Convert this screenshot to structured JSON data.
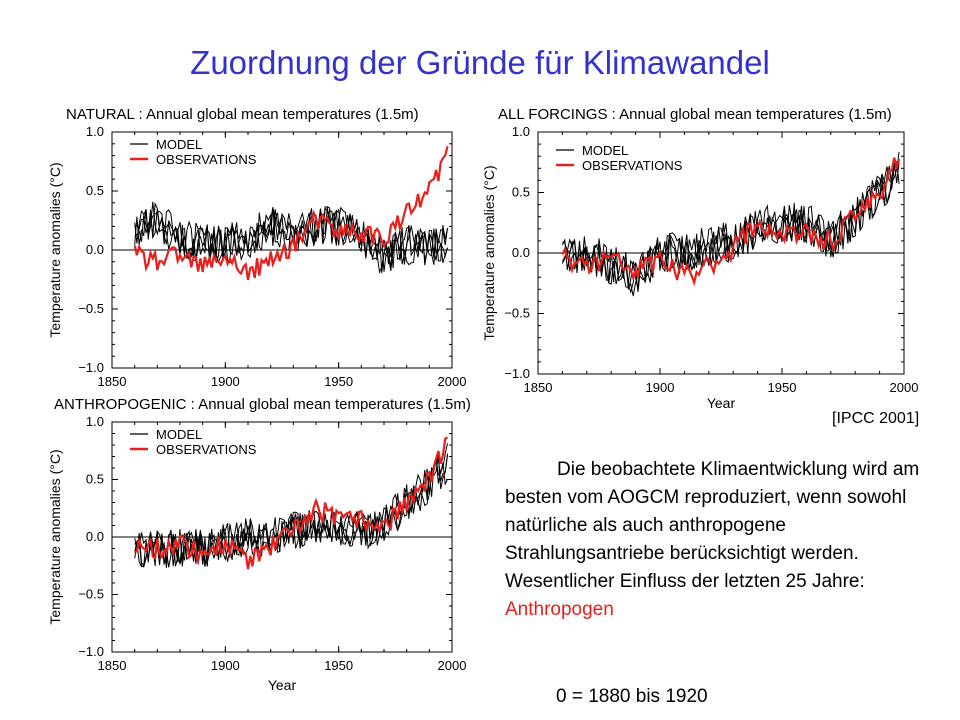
{
  "slide": {
    "title": "Zuordnung der Gründe für Klimawandel",
    "source": "[IPCC 2001]",
    "caption_main": "Die beobachtete Klimaentwicklung wird am besten vom AOGCM reproduziert, wenn sowohl natürliche als auch anthropogene Strahlungsantriebe berücksichtigt werden. Wesentlicher Einfluss der letzten 25 Jahre:",
    "caption_highlight": "Anthropogen",
    "baseline_note": "0 = 1880 bis 1920"
  },
  "colors": {
    "title": "#3333cc",
    "model": "#000000",
    "observations": "#e8201c",
    "highlight": "#e8201c"
  },
  "chart_data": [
    {
      "type": "line",
      "title": "NATURAL : Annual global mean temperatures (1.5m)",
      "xlabel": "",
      "ylabel": "Temperature anomalies (°C)",
      "xlim": [
        1850,
        2000
      ],
      "ylim": [
        -1.0,
        1.0
      ],
      "x_ticks": [
        "1850",
        "1900",
        "1950",
        "2000"
      ],
      "y_ticks": [
        "1.0",
        "0.5",
        "0.0",
        "−0.5",
        "−1.0"
      ],
      "legend": [
        "MODEL",
        "OBSERVATIONS"
      ],
      "legend_position": "top-left",
      "series": [
        {
          "name": "OBSERVATIONS",
          "x": [
            1860,
            1870,
            1880,
            1890,
            1900,
            1910,
            1920,
            1930,
            1940,
            1950,
            1960,
            1970,
            1980,
            1990,
            2000
          ],
          "values": [
            -0.05,
            -0.1,
            -0.05,
            -0.15,
            -0.05,
            -0.2,
            -0.1,
            0.05,
            0.25,
            0.15,
            0.15,
            0.1,
            0.3,
            0.5,
            0.9
          ]
        },
        {
          "name": "MODEL",
          "x": [
            1860,
            1870,
            1880,
            1890,
            1900,
            1910,
            1920,
            1930,
            1940,
            1950,
            1960,
            1970,
            1980,
            1990,
            2000
          ],
          "values": [
            0.2,
            0.25,
            0.1,
            0.05,
            0.05,
            0.1,
            0.2,
            0.15,
            0.2,
            0.2,
            0.1,
            -0.05,
            0.05,
            0.0,
            0.1
          ]
        }
      ]
    },
    {
      "type": "line",
      "title": "ALL FORCINGS : Annual global mean temperatures (1.5m)",
      "xlabel": "Year",
      "ylabel": "Temperature anomalies (°C)",
      "xlim": [
        1850,
        2000
      ],
      "ylim": [
        -1.0,
        1.0
      ],
      "x_ticks": [
        "1850",
        "1900",
        "1950",
        "2000"
      ],
      "y_ticks": [
        "1.0",
        "0.5",
        "0.0",
        "−0.5",
        "−1.0"
      ],
      "legend": [
        "MODEL",
        "OBSERVATIONS"
      ],
      "legend_position": "top-left",
      "series": [
        {
          "name": "OBSERVATIONS",
          "x": [
            1860,
            1870,
            1880,
            1890,
            1900,
            1910,
            1920,
            1930,
            1940,
            1950,
            1960,
            1970,
            1980,
            1990,
            2000
          ],
          "values": [
            -0.05,
            -0.1,
            -0.05,
            -0.15,
            -0.05,
            -0.2,
            -0.1,
            0.05,
            0.25,
            0.15,
            0.15,
            0.1,
            0.3,
            0.5,
            0.9
          ]
        },
        {
          "name": "MODEL",
          "x": [
            1860,
            1870,
            1880,
            1890,
            1900,
            1910,
            1920,
            1930,
            1940,
            1950,
            1960,
            1970,
            1980,
            1990,
            2000
          ],
          "values": [
            0.0,
            0.0,
            -0.1,
            -0.2,
            0.0,
            0.0,
            0.05,
            0.1,
            0.2,
            0.25,
            0.25,
            0.1,
            0.3,
            0.5,
            0.75
          ]
        }
      ]
    },
    {
      "type": "line",
      "title": "ANTHROPOGENIC : Annual global mean temperatures (1.5m)",
      "xlabel": "Year",
      "ylabel": "Temperature anomalies (°C)",
      "xlim": [
        1850,
        2000
      ],
      "ylim": [
        -1.0,
        1.0
      ],
      "x_ticks": [
        "1850",
        "1900",
        "1950",
        "2000"
      ],
      "y_ticks": [
        "1.0",
        "0.5",
        "0.0",
        "−0.5",
        "−1.0"
      ],
      "legend": [
        "MODEL",
        "OBSERVATIONS"
      ],
      "legend_position": "top-left",
      "series": [
        {
          "name": "OBSERVATIONS",
          "x": [
            1860,
            1870,
            1880,
            1890,
            1900,
            1910,
            1920,
            1930,
            1940,
            1950,
            1960,
            1970,
            1980,
            1990,
            2000
          ],
          "values": [
            -0.05,
            -0.1,
            -0.05,
            -0.15,
            -0.05,
            -0.2,
            -0.1,
            0.05,
            0.25,
            0.15,
            0.15,
            0.1,
            0.3,
            0.5,
            0.9
          ]
        },
        {
          "name": "MODEL",
          "x": [
            1860,
            1870,
            1880,
            1890,
            1900,
            1910,
            1920,
            1930,
            1940,
            1950,
            1960,
            1970,
            1980,
            1990,
            2000
          ],
          "values": [
            -0.1,
            -0.1,
            -0.1,
            -0.1,
            -0.05,
            0.0,
            0.0,
            0.05,
            0.1,
            0.1,
            0.05,
            0.1,
            0.3,
            0.45,
            0.7
          ]
        }
      ]
    }
  ]
}
